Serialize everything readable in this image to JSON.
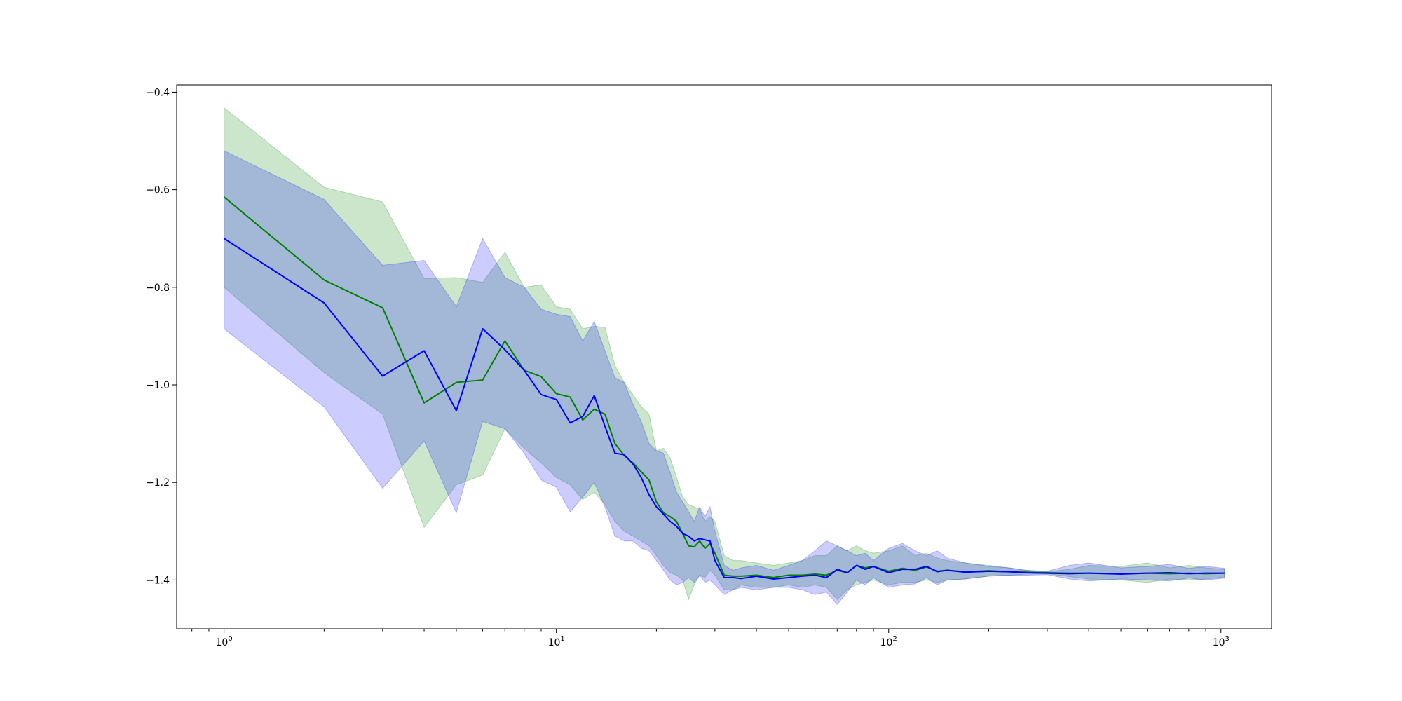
{
  "chart_data": {
    "type": "line",
    "title": "",
    "xlabel": "",
    "ylabel": "",
    "x_scale": "log",
    "xlim": [
      0.72,
      1420
    ],
    "ylim": [
      -1.5,
      -0.385
    ],
    "grid": false,
    "legend": "none",
    "x_ticks": [
      {
        "value": 1,
        "base": "10",
        "exp": "0"
      },
      {
        "value": 10,
        "base": "10",
        "exp": "1"
      },
      {
        "value": 100,
        "base": "10",
        "exp": "2"
      },
      {
        "value": 1000,
        "base": "10",
        "exp": "3"
      }
    ],
    "y_ticks": [
      {
        "value": -1.4,
        "label": "−1.4"
      },
      {
        "value": -1.2,
        "label": "−1.2"
      },
      {
        "value": -1.0,
        "label": "−1.0"
      },
      {
        "value": -0.8,
        "label": "−0.8"
      },
      {
        "value": -0.6,
        "label": "−0.6"
      },
      {
        "value": -0.4,
        "label": "−0.4"
      }
    ],
    "series": [
      {
        "color": "#008000",
        "band_color": "#008000",
        "x": [
          1,
          2,
          3,
          4,
          5,
          6,
          7,
          8,
          9,
          10,
          11,
          12,
          13,
          14,
          15,
          16,
          17,
          18,
          19,
          20,
          21,
          22,
          23,
          24,
          25,
          26,
          27,
          28,
          29,
          30,
          32,
          34,
          36,
          40,
          45,
          50,
          55,
          60,
          65,
          70,
          75,
          80,
          85,
          90,
          100,
          110,
          120,
          130,
          140,
          150,
          170,
          200,
          230,
          260,
          300,
          350,
          400,
          500,
          600,
          700,
          800,
          900,
          1024
        ],
        "mean": [
          -0.615,
          -0.785,
          -0.842,
          -1.037,
          -0.995,
          -0.99,
          -0.91,
          -0.97,
          -0.983,
          -1.018,
          -1.025,
          -1.072,
          -1.05,
          -1.06,
          -1.12,
          -1.145,
          -1.16,
          -1.178,
          -1.195,
          -1.24,
          -1.262,
          -1.27,
          -1.28,
          -1.305,
          -1.33,
          -1.332,
          -1.32,
          -1.335,
          -1.325,
          -1.345,
          -1.39,
          -1.392,
          -1.392,
          -1.39,
          -1.395,
          -1.39,
          -1.39,
          -1.388,
          -1.39,
          -1.38,
          -1.385,
          -1.37,
          -1.375,
          -1.372,
          -1.382,
          -1.376,
          -1.38,
          -1.373,
          -1.382,
          -1.38,
          -1.383,
          -1.381,
          -1.383,
          -1.384,
          -1.385,
          -1.386,
          -1.386,
          -1.387,
          -1.386,
          -1.387,
          -1.386,
          -1.387,
          -1.386
        ],
        "upper": [
          -0.432,
          -0.595,
          -0.625,
          -0.782,
          -0.78,
          -0.79,
          -0.728,
          -0.8,
          -0.795,
          -0.84,
          -0.845,
          -0.885,
          -0.88,
          -0.882,
          -0.96,
          -0.995,
          -1.02,
          -1.045,
          -1.06,
          -1.135,
          -1.13,
          -1.15,
          -1.19,
          -1.23,
          -1.245,
          -1.25,
          -1.255,
          -1.28,
          -1.27,
          -1.28,
          -1.35,
          -1.36,
          -1.36,
          -1.365,
          -1.37,
          -1.365,
          -1.36,
          -1.35,
          -1.35,
          -1.33,
          -1.34,
          -1.33,
          -1.34,
          -1.345,
          -1.34,
          -1.33,
          -1.35,
          -1.345,
          -1.355,
          -1.36,
          -1.365,
          -1.37,
          -1.375,
          -1.38,
          -1.383,
          -1.378,
          -1.37,
          -1.372,
          -1.365,
          -1.375,
          -1.37,
          -1.375,
          -1.378
        ],
        "lower": [
          -0.8,
          -0.975,
          -1.06,
          -1.292,
          -1.205,
          -1.185,
          -1.09,
          -1.13,
          -1.16,
          -1.19,
          -1.205,
          -1.235,
          -1.22,
          -1.245,
          -1.28,
          -1.3,
          -1.31,
          -1.32,
          -1.33,
          -1.35,
          -1.37,
          -1.385,
          -1.39,
          -1.4,
          -1.44,
          -1.41,
          -1.39,
          -1.395,
          -1.38,
          -1.39,
          -1.42,
          -1.42,
          -1.41,
          -1.415,
          -1.415,
          -1.41,
          -1.415,
          -1.41,
          -1.415,
          -1.44,
          -1.42,
          -1.41,
          -1.405,
          -1.4,
          -1.41,
          -1.405,
          -1.405,
          -1.4,
          -1.405,
          -1.4,
          -1.398,
          -1.392,
          -1.39,
          -1.388,
          -1.387,
          -1.393,
          -1.398,
          -1.4,
          -1.405,
          -1.398,
          -1.4,
          -1.398,
          -1.394
        ]
      },
      {
        "color": "#0000ff",
        "band_color": "#0000ff",
        "x": [
          1,
          2,
          3,
          4,
          5,
          6,
          7,
          8,
          9,
          10,
          11,
          12,
          13,
          14,
          15,
          16,
          17,
          18,
          19,
          20,
          21,
          22,
          23,
          24,
          25,
          26,
          27,
          28,
          29,
          30,
          32,
          34,
          36,
          40,
          45,
          50,
          55,
          60,
          65,
          70,
          75,
          80,
          85,
          90,
          100,
          110,
          120,
          130,
          140,
          150,
          170,
          200,
          230,
          260,
          300,
          350,
          400,
          500,
          600,
          700,
          800,
          900,
          1024
        ],
        "mean": [
          -0.7,
          -0.832,
          -0.982,
          -0.93,
          -1.053,
          -0.885,
          -0.928,
          -0.97,
          -1.02,
          -1.03,
          -1.078,
          -1.065,
          -1.022,
          -1.085,
          -1.14,
          -1.143,
          -1.162,
          -1.19,
          -1.225,
          -1.25,
          -1.265,
          -1.28,
          -1.29,
          -1.305,
          -1.31,
          -1.32,
          -1.315,
          -1.318,
          -1.32,
          -1.36,
          -1.395,
          -1.395,
          -1.397,
          -1.392,
          -1.398,
          -1.395,
          -1.392,
          -1.39,
          -1.395,
          -1.378,
          -1.385,
          -1.37,
          -1.378,
          -1.372,
          -1.385,
          -1.378,
          -1.378,
          -1.372,
          -1.383,
          -1.38,
          -1.384,
          -1.382,
          -1.383,
          -1.385,
          -1.386,
          -1.387,
          -1.386,
          -1.388,
          -1.386,
          -1.385,
          -1.387,
          -1.386,
          -1.386
        ],
        "upper": [
          -0.52,
          -0.62,
          -0.755,
          -0.745,
          -0.84,
          -0.7,
          -0.78,
          -0.8,
          -0.845,
          -0.855,
          -0.86,
          -0.91,
          -0.87,
          -0.93,
          -0.985,
          -0.995,
          -1.04,
          -1.075,
          -1.12,
          -1.135,
          -1.14,
          -1.18,
          -1.22,
          -1.24,
          -1.26,
          -1.28,
          -1.25,
          -1.27,
          -1.25,
          -1.3,
          -1.37,
          -1.38,
          -1.375,
          -1.37,
          -1.38,
          -1.37,
          -1.36,
          -1.34,
          -1.32,
          -1.33,
          -1.34,
          -1.35,
          -1.345,
          -1.36,
          -1.335,
          -1.325,
          -1.34,
          -1.35,
          -1.34,
          -1.355,
          -1.365,
          -1.372,
          -1.375,
          -1.38,
          -1.382,
          -1.37,
          -1.365,
          -1.375,
          -1.372,
          -1.368,
          -1.376,
          -1.372,
          -1.376
        ],
        "lower": [
          -0.885,
          -1.045,
          -1.212,
          -1.115,
          -1.262,
          -1.075,
          -1.09,
          -1.14,
          -1.195,
          -1.21,
          -1.26,
          -1.23,
          -1.2,
          -1.25,
          -1.31,
          -1.32,
          -1.32,
          -1.335,
          -1.34,
          -1.36,
          -1.38,
          -1.4,
          -1.41,
          -1.405,
          -1.395,
          -1.405,
          -1.39,
          -1.405,
          -1.4,
          -1.41,
          -1.43,
          -1.42,
          -1.415,
          -1.42,
          -1.415,
          -1.415,
          -1.42,
          -1.43,
          -1.425,
          -1.45,
          -1.425,
          -1.4,
          -1.41,
          -1.395,
          -1.415,
          -1.41,
          -1.408,
          -1.395,
          -1.41,
          -1.4,
          -1.398,
          -1.392,
          -1.39,
          -1.39,
          -1.389,
          -1.398,
          -1.402,
          -1.398,
          -1.4,
          -1.402,
          -1.396,
          -1.4,
          -1.396
        ]
      }
    ]
  }
}
